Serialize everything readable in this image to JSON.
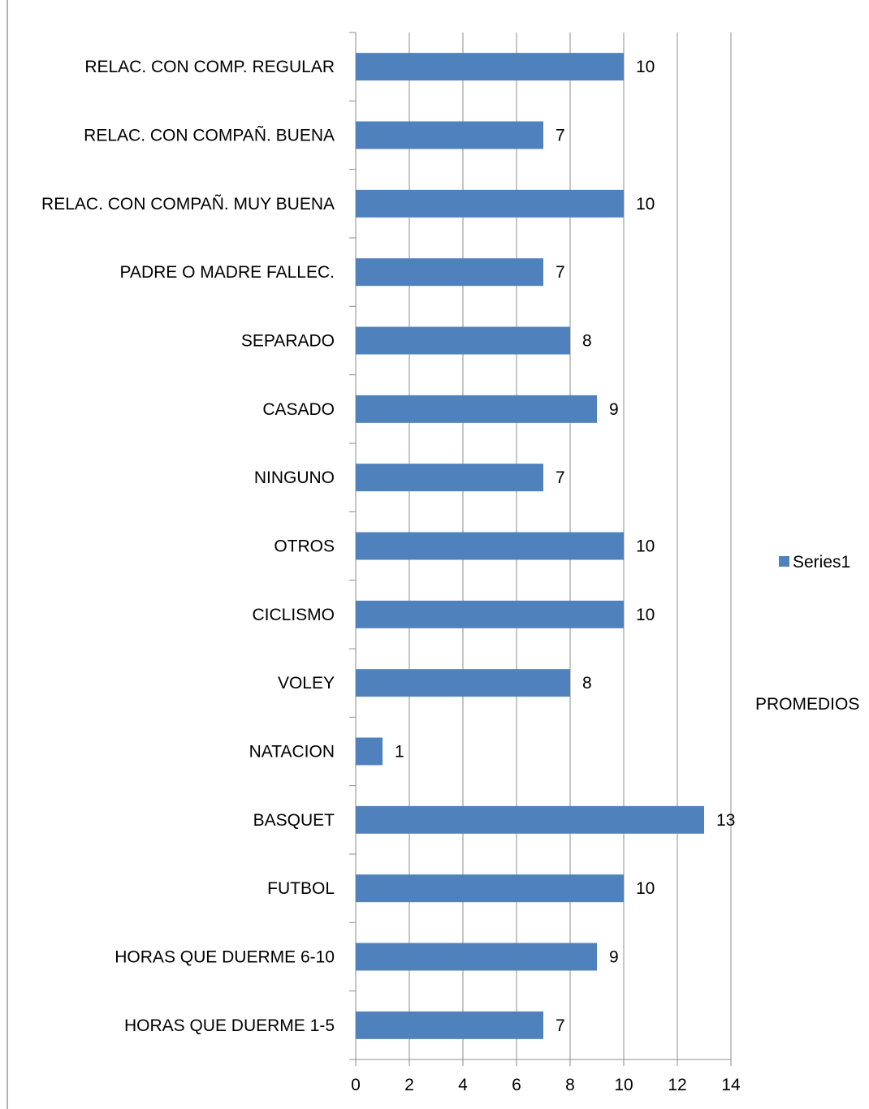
{
  "chart_data": {
    "type": "bar",
    "orientation": "horizontal",
    "categories": [
      "HORAS QUE DUERME 1-5",
      "HORAS QUE DUERME 6-10",
      "FUTBOL",
      "BASQUET",
      "NATACION",
      "VOLEY",
      "CICLISMO",
      "OTROS",
      "NINGUNO",
      "CASADO",
      "SEPARADO",
      "PADRE O MADRE FALLEC.",
      "RELAC. CON COMPAÑ. MUY BUENA",
      "RELAC. CON COMPAÑ. BUENA",
      "RELAC. CON COMP. REGULAR"
    ],
    "series": [
      {
        "name": "Series1",
        "values": [
          7,
          9,
          10,
          13,
          1,
          8,
          10,
          10,
          7,
          9,
          8,
          7,
          10,
          7,
          10
        ],
        "color": "#4F81BD"
      }
    ],
    "xlim": [
      0,
      14
    ],
    "xticks": [
      "0",
      "2",
      "4",
      "6",
      "8",
      "10",
      "12",
      "14"
    ],
    "grid": "vertical",
    "legend": "right",
    "side_label": "PROMEDIOS",
    "data_labels": true
  }
}
